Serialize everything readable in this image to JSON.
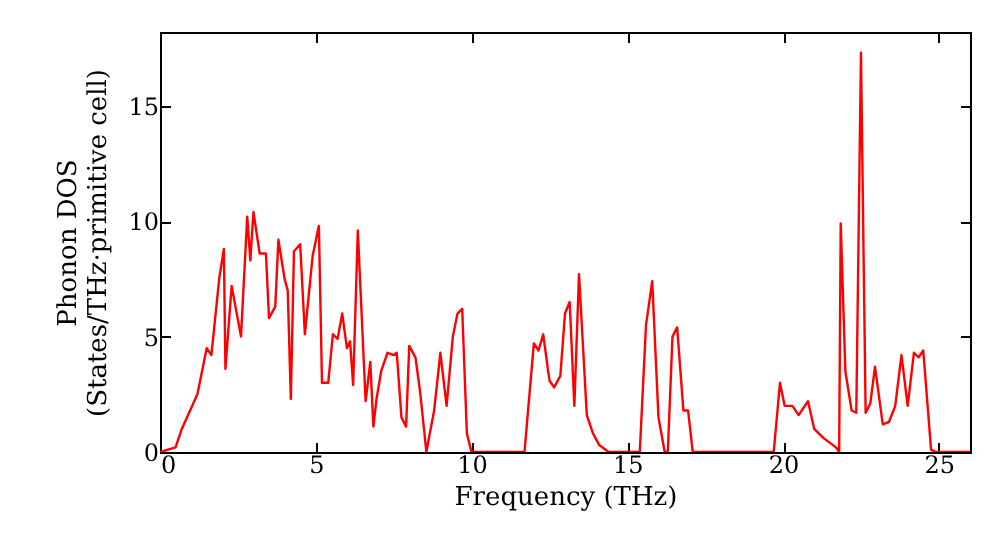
{
  "chart_data": {
    "type": "line",
    "xlabel": "Frequency (THz)",
    "ylabel": "Phonon DOS\n(States/THz·primitive cell)",
    "xlim": [
      0,
      26
    ],
    "ylim": [
      0,
      18.2
    ],
    "xticks": [
      0,
      5,
      10,
      15,
      20,
      25
    ],
    "yticks": [
      0,
      5,
      10,
      15
    ],
    "line_style": "solid",
    "x": [
      0,
      0.5,
      0.7,
      1.2,
      1.5,
      1.65,
      1.9,
      2.05,
      2.1,
      2.3,
      2.6,
      2.8,
      2.9,
      3.0,
      3.2,
      3.4,
      3.5,
      3.7,
      3.8,
      4.0,
      4.1,
      4.2,
      4.3,
      4.5,
      4.65,
      4.9,
      5.1,
      5.2,
      5.4,
      5.55,
      5.7,
      5.85,
      6.0,
      6.1,
      6.2,
      6.35,
      6.6,
      6.75,
      6.85,
      6.95,
      7.1,
      7.3,
      7.5,
      7.6,
      7.75,
      7.9,
      8.0,
      8.2,
      8.35,
      8.55,
      8.8,
      9.0,
      9.2,
      9.4,
      9.55,
      9.7,
      9.85,
      10.0,
      11.7,
      12.0,
      12.15,
      12.3,
      12.5,
      12.65,
      12.85,
      13.0,
      13.15,
      13.3,
      13.45,
      13.7,
      13.9,
      14.1,
      14.4,
      15.4,
      15.6,
      15.8,
      16.0,
      16.2,
      16.3,
      16.45,
      16.6,
      16.8,
      16.95,
      17.1,
      19.7,
      19.9,
      20.05,
      20.3,
      20.5,
      20.8,
      21.0,
      21.3,
      21.7,
      21.8,
      21.85,
      22.0,
      22.2,
      22.35,
      22.5,
      22.65,
      22.8,
      22.95,
      23.2,
      23.4,
      23.6,
      23.8,
      24.0,
      24.2,
      24.35,
      24.5,
      24.75,
      24.9,
      26.0
    ],
    "series": [
      {
        "color": "#ff0000",
        "values": [
          0,
          0.2,
          1,
          2.5,
          4.5,
          4.2,
          7.5,
          8.8,
          3.6,
          7.2,
          5,
          10.2,
          8.3,
          10.4,
          8.6,
          8.6,
          5.8,
          6.3,
          9.2,
          7.5,
          7.0,
          2.3,
          8.7,
          9.0,
          5.1,
          8.5,
          9.8,
          3.0,
          3.0,
          5.1,
          4.9,
          6.0,
          4.5,
          4.8,
          2.9,
          9.6,
          2.2,
          3.9,
          1.1,
          2.3,
          3.5,
          4.3,
          4.2,
          4.3,
          1.5,
          1.1,
          4.6,
          4.1,
          2.6,
          0,
          1.8,
          4.3,
          2.0,
          5.0,
          6.0,
          6.2,
          0.8,
          0,
          0,
          4.7,
          4.4,
          5.1,
          3.1,
          2.8,
          3.3,
          6.0,
          6.5,
          2.0,
          7.7,
          1.6,
          0.8,
          0.3,
          0,
          0,
          5.5,
          7.4,
          1.5,
          0,
          0,
          5.0,
          5.4,
          1.8,
          1.8,
          0,
          0,
          3.0,
          2.0,
          2.0,
          1.6,
          2.2,
          1.0,
          0.6,
          0.2,
          0,
          9.9,
          3.5,
          1.8,
          1.7,
          17.3,
          1.7,
          2.1,
          3.7,
          1.2,
          1.3,
          2.0,
          4.2,
          2.0,
          4.3,
          4.1,
          4.4,
          0.1,
          0,
          0
        ]
      }
    ]
  }
}
